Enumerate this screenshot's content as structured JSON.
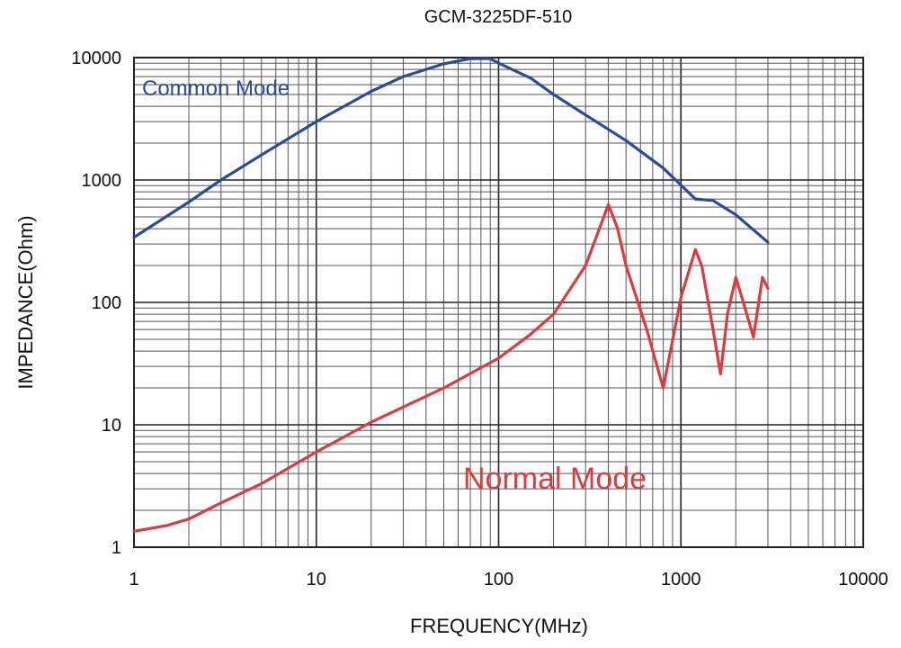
{
  "chart_data": {
    "type": "line",
    "title": "GCM-3225DF-510",
    "xlabel": "FREQUENCY(MHz)",
    "ylabel": "IMPEDANCE(Ohm)",
    "x_scale": "log",
    "y_scale": "log",
    "xlim": [
      1,
      10000
    ],
    "ylim": [
      1,
      10000
    ],
    "x_ticks": [
      1,
      10,
      100,
      1000,
      10000
    ],
    "y_ticks": [
      1,
      10,
      100,
      1000,
      10000
    ],
    "x_tick_labels": [
      "1",
      "10",
      "100",
      "1000",
      "10000"
    ],
    "y_tick_labels": [
      "1",
      "10",
      "100",
      "1000",
      "10000"
    ],
    "grid": true,
    "series": [
      {
        "name": "Common Mode",
        "color": "#2b4a9c",
        "x": [
          1,
          2,
          3,
          5,
          10,
          20,
          30,
          50,
          70,
          90,
          100,
          150,
          200,
          300,
          500,
          800,
          1200,
          1500,
          2000,
          3000
        ],
        "y": [
          340,
          660,
          1000,
          1600,
          3000,
          5300,
          7000,
          8900,
          9800,
          9800,
          9000,
          6800,
          5000,
          3400,
          2100,
          1250,
          700,
          680,
          520,
          310
        ]
      },
      {
        "name": "Normal Mode",
        "color": "#e0393e",
        "x": [
          1,
          1.5,
          2,
          3,
          5,
          10,
          20,
          50,
          100,
          150,
          200,
          300,
          400,
          450,
          500,
          650,
          800,
          1000,
          1200,
          1300,
          1500,
          1650,
          1800,
          2000,
          2200,
          2500,
          2800,
          3000
        ],
        "y": [
          1.35,
          1.5,
          1.7,
          2.3,
          3.3,
          6,
          10.5,
          20,
          35,
          55,
          80,
          200,
          630,
          400,
          200,
          60,
          20,
          110,
          270,
          200,
          60,
          26,
          80,
          160,
          100,
          52,
          160,
          130
        ]
      }
    ],
    "annotations": [
      "Common Mode",
      "Normal Mode"
    ]
  }
}
